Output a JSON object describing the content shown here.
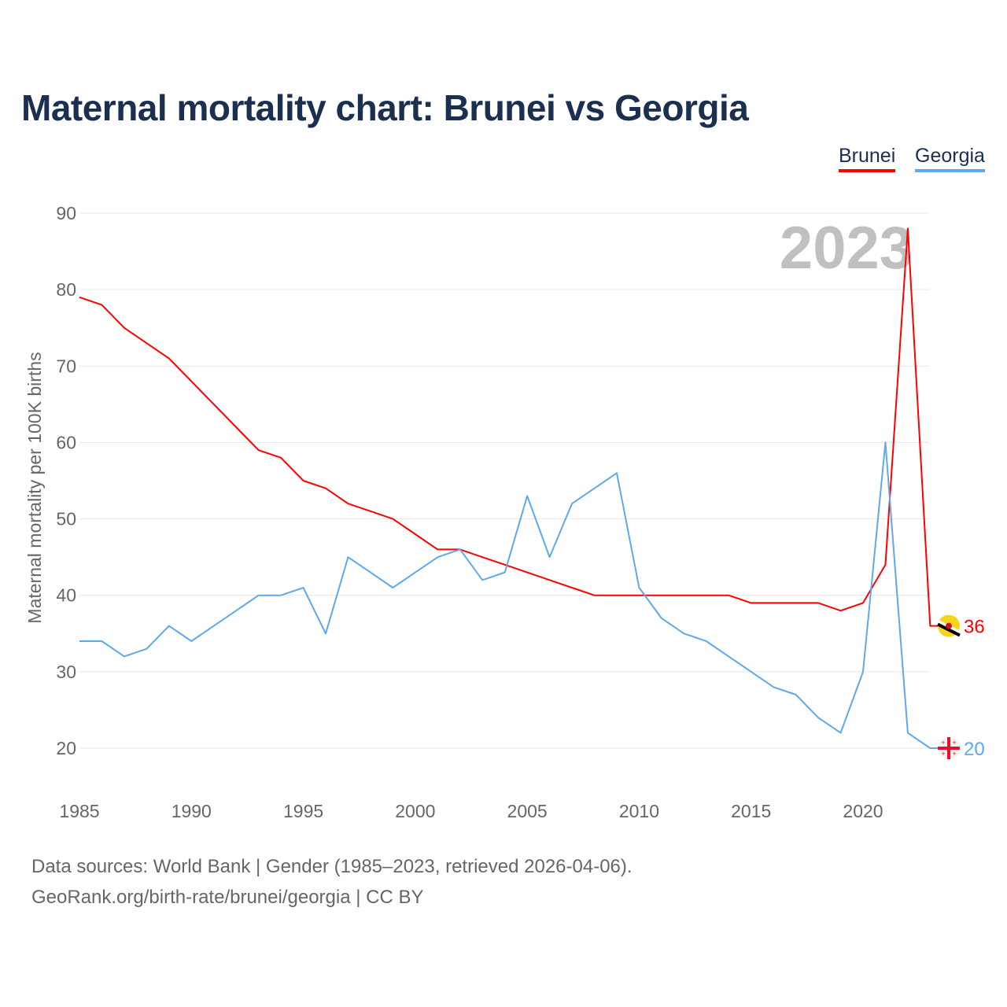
{
  "title": "Maternal mortality chart: Brunei vs Georgia",
  "legend": [
    "Brunei",
    "Georgia"
  ],
  "year_label": "2023",
  "sources": {
    "line1": "Data sources: World Bank | Gender (1985–2023, retrieved 2026-04-06).",
    "line2": "GeoRank.org/birth-rate/brunei/georgia | CC BY"
  },
  "chart_data": {
    "type": "line",
    "title": "Maternal mortality chart: Brunei vs Georgia",
    "xlabel": "",
    "ylabel": "Maternal mortality per 100K births",
    "xlim": [
      1985,
      2023
    ],
    "ylim": [
      20,
      90
    ],
    "xticks": [
      "1985",
      "1990",
      "1995",
      "2000",
      "2005",
      "2010",
      "2015",
      "2020"
    ],
    "yticks": [
      "20",
      "30",
      "40",
      "50",
      "60",
      "70",
      "80",
      "90"
    ],
    "grid": true,
    "legend_position": "top-right",
    "x": [
      1985,
      1986,
      1987,
      1988,
      1989,
      1990,
      1991,
      1992,
      1993,
      1994,
      1995,
      1996,
      1997,
      1998,
      1999,
      2000,
      2001,
      2002,
      2003,
      2004,
      2005,
      2006,
      2007,
      2008,
      2009,
      2010,
      2011,
      2012,
      2013,
      2014,
      2015,
      2016,
      2017,
      2018,
      2019,
      2020,
      2021,
      2022,
      2023
    ],
    "series": [
      {
        "name": "Brunei",
        "color": "#ff0000",
        "end_label": "36",
        "values": [
          79,
          78,
          75,
          73,
          71,
          68,
          65,
          62,
          59,
          58,
          55,
          54,
          52,
          51,
          50,
          48,
          46,
          46,
          45,
          44,
          43,
          42,
          41,
          40,
          40,
          40,
          40,
          40,
          40,
          40,
          39,
          39,
          39,
          39,
          38,
          39,
          44,
          88,
          36
        ]
      },
      {
        "name": "Georgia",
        "color": "#5ea8ec",
        "end_label": "20",
        "values": [
          34,
          34,
          32,
          33,
          36,
          34,
          36,
          38,
          40,
          40,
          41,
          35,
          45,
          43,
          41,
          43,
          45,
          46,
          42,
          43,
          53,
          45,
          52,
          54,
          56,
          41,
          37,
          35,
          34,
          32,
          30,
          28,
          27,
          24,
          22,
          30,
          60,
          22,
          20
        ]
      }
    ]
  }
}
